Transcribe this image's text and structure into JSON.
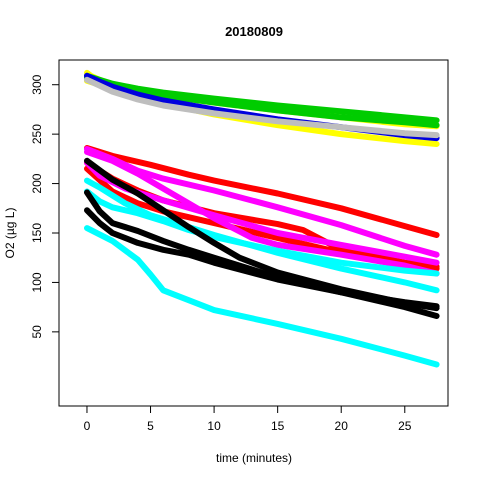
{
  "chart_data": {
    "type": "line",
    "title": "20180809",
    "xlabel": "time (minutes)",
    "ylabel": "O2 (µg L)",
    "xlim": [
      -2.2,
      28.4
    ],
    "ylim": [
      -25,
      325
    ],
    "xticks": [
      0,
      5,
      10,
      15,
      20,
      25
    ],
    "yticks": [
      50,
      100,
      150,
      200,
      250,
      300
    ],
    "grid": false,
    "legend": "none",
    "series": [
      {
        "color": "#FFFF00",
        "x": [
          0,
          0.3,
          1,
          2,
          4,
          6,
          10,
          15,
          20,
          25,
          27.5
        ],
        "y": [
          312,
          309,
          305,
          300,
          294,
          289,
          282,
          274,
          267,
          260,
          258
        ]
      },
      {
        "color": "#FFFF00",
        "x": [
          0,
          1,
          2,
          4,
          6,
          10,
          15,
          20,
          25,
          27.5
        ],
        "y": [
          304,
          300,
          295,
          288,
          281,
          270,
          259,
          250,
          243,
          240
        ]
      },
      {
        "color": "#00CC00",
        "x": [
          0,
          1,
          2,
          4,
          6,
          10,
          15,
          20,
          25,
          27.5
        ],
        "y": [
          309,
          305,
          301,
          296,
          292,
          286,
          279,
          273,
          267,
          264
        ]
      },
      {
        "color": "#00CC00",
        "x": [
          0,
          1,
          2,
          4,
          6,
          10,
          15,
          20,
          25,
          27.5
        ],
        "y": [
          307,
          303,
          299,
          293,
          289,
          282,
          274,
          267,
          262,
          259
        ]
      },
      {
        "color": "#0000DD",
        "x": [
          0,
          1,
          2,
          4,
          6,
          10,
          15,
          20,
          25,
          27.5
        ],
        "y": [
          309,
          303,
          298,
          290,
          284,
          275,
          265,
          257,
          249,
          246
        ]
      },
      {
        "color": "#BEBEBE",
        "x": [
          0,
          1,
          2,
          4,
          6,
          10,
          15,
          20,
          25,
          27.5
        ],
        "y": [
          305,
          299,
          293,
          285,
          279,
          271,
          263,
          257,
          251,
          249
        ]
      },
      {
        "color": "#FF0000",
        "x": [
          0,
          2,
          5,
          8,
          10,
          15,
          20,
          25,
          27.5
        ],
        "y": [
          236,
          228,
          219,
          209,
          203,
          190,
          175,
          157,
          148
        ]
      },
      {
        "color": "#FF0000",
        "x": [
          0,
          2,
          4,
          6,
          10,
          15,
          17,
          20,
          25,
          27.5
        ],
        "y": [
          221,
          205,
          193,
          183,
          170,
          159,
          153,
          133,
          120,
          116
        ]
      },
      {
        "color": "#FF0000",
        "x": [
          0,
          2,
          4,
          6,
          10,
          15,
          20,
          25,
          27.5
        ],
        "y": [
          215,
          192,
          180,
          172,
          160,
          145,
          130,
          118,
          114
        ]
      },
      {
        "color": "#FF00FF",
        "x": [
          0,
          2,
          4,
          6,
          10,
          15,
          20,
          25,
          27.5
        ],
        "y": [
          235,
          225,
          213,
          205,
          193,
          176,
          158,
          137,
          128
        ]
      },
      {
        "color": "#FF00FF",
        "x": [
          0,
          2,
          4,
          6,
          8,
          10,
          13,
          15,
          20,
          25,
          27.5
        ],
        "y": [
          232,
          223,
          210,
          195,
          180,
          165,
          145,
          138,
          128,
          117,
          109
        ]
      },
      {
        "color": "#FF00FF",
        "x": [
          0,
          1,
          3,
          6,
          10,
          15,
          20,
          25,
          27.5
        ],
        "y": [
          221,
          208,
          195,
          183,
          168,
          150,
          138,
          126,
          120
        ]
      },
      {
        "color": "#00FFFF",
        "x": [
          0,
          1,
          2,
          3,
          5,
          10,
          15,
          20,
          25,
          27.5
        ],
        "y": [
          203,
          196,
          188,
          180,
          168,
          148,
          130,
          114,
          100,
          92
        ]
      },
      {
        "color": "#00FFFF",
        "x": [
          0,
          2,
          4,
          5,
          6,
          8,
          10,
          15,
          20,
          25,
          27.5
        ],
        "y": [
          155,
          142,
          123,
          108,
          92,
          82,
          72,
          58,
          43,
          26,
          17
        ]
      },
      {
        "color": "#00FFFF",
        "x": [
          0,
          1,
          2,
          4,
          6,
          8,
          10,
          15,
          20,
          25,
          27.5
        ],
        "y": [
          192,
          182,
          176,
          170,
          162,
          153,
          146,
          132,
          120,
          112,
          109
        ]
      },
      {
        "color": "#000000",
        "x": [
          0,
          2,
          4,
          6,
          8,
          10,
          12,
          15,
          20,
          25,
          27.5
        ],
        "y": [
          223,
          204,
          190,
          173,
          156,
          140,
          125,
          110,
          93,
          79,
          74
        ]
      },
      {
        "color": "#000000",
        "x": [
          0,
          1,
          2,
          4,
          6,
          8,
          10,
          15,
          20,
          25,
          27.5
        ],
        "y": [
          191,
          172,
          160,
          152,
          142,
          133,
          125,
          105,
          90,
          75,
          66
        ]
      },
      {
        "color": "#000000",
        "x": [
          0,
          1,
          2,
          4,
          6,
          8,
          10,
          15,
          20,
          25,
          27.5
        ],
        "y": [
          173,
          160,
          150,
          140,
          133,
          128,
          120,
          103,
          90,
          80,
          76
        ]
      }
    ]
  }
}
